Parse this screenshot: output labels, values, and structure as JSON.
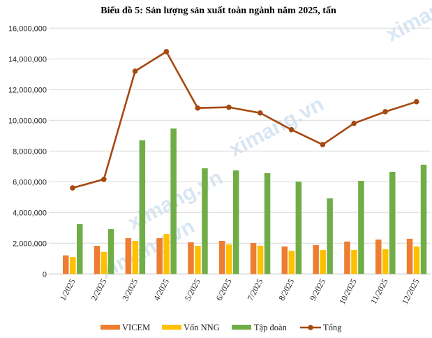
{
  "chart_data": {
    "type": "bar+line",
    "title": "Biểu đồ 5: Sản lượng sản xuất toàn ngành năm 2025, tấn",
    "xlabel": "",
    "ylabel": "",
    "ylim": [
      0,
      16000000
    ],
    "yticks": [
      "0",
      "2,000,000",
      "4,000,000",
      "6,000,000",
      "8,000,000",
      "10,000,000",
      "12,000,000",
      "14,000,000",
      "16,000,000"
    ],
    "ytick_values": [
      0,
      2000000,
      4000000,
      6000000,
      8000000,
      10000000,
      12000000,
      14000000,
      16000000
    ],
    "grid": true,
    "legend_position": "bottom",
    "categories": [
      "1/2025",
      "2/2025",
      "3/2025",
      "4/2025",
      "5/2025",
      "6/2025",
      "7/2025",
      "8/2025",
      "9/2025",
      "10/2025",
      "11/2025",
      "12/2025"
    ],
    "series": [
      {
        "name": "VICEM",
        "type": "bar",
        "color": "#ED7D31",
        "values": [
          1210000,
          1830000,
          2330000,
          2330000,
          2060000,
          2150000,
          2010000,
          1790000,
          1880000,
          2110000,
          2240000,
          2290000
        ]
      },
      {
        "name": "Vốn NNG",
        "type": "bar",
        "color": "#FFC000",
        "values": [
          1100000,
          1440000,
          2150000,
          2600000,
          1830000,
          1920000,
          1840000,
          1510000,
          1560000,
          1560000,
          1610000,
          1790000
        ]
      },
      {
        "name": "Tập đoàn",
        "type": "bar",
        "color": "#70AD47",
        "values": [
          3240000,
          2920000,
          8700000,
          9470000,
          6880000,
          6740000,
          6560000,
          6010000,
          4920000,
          6060000,
          6650000,
          7110000
        ]
      },
      {
        "name": "Tổng",
        "type": "line",
        "color": "#A5490F",
        "values": [
          5600000,
          6160000,
          13200000,
          14470000,
          10800000,
          10850000,
          10480000,
          9390000,
          8420000,
          9800000,
          10560000,
          11210000
        ]
      }
    ]
  },
  "watermark": "ximang.vn"
}
